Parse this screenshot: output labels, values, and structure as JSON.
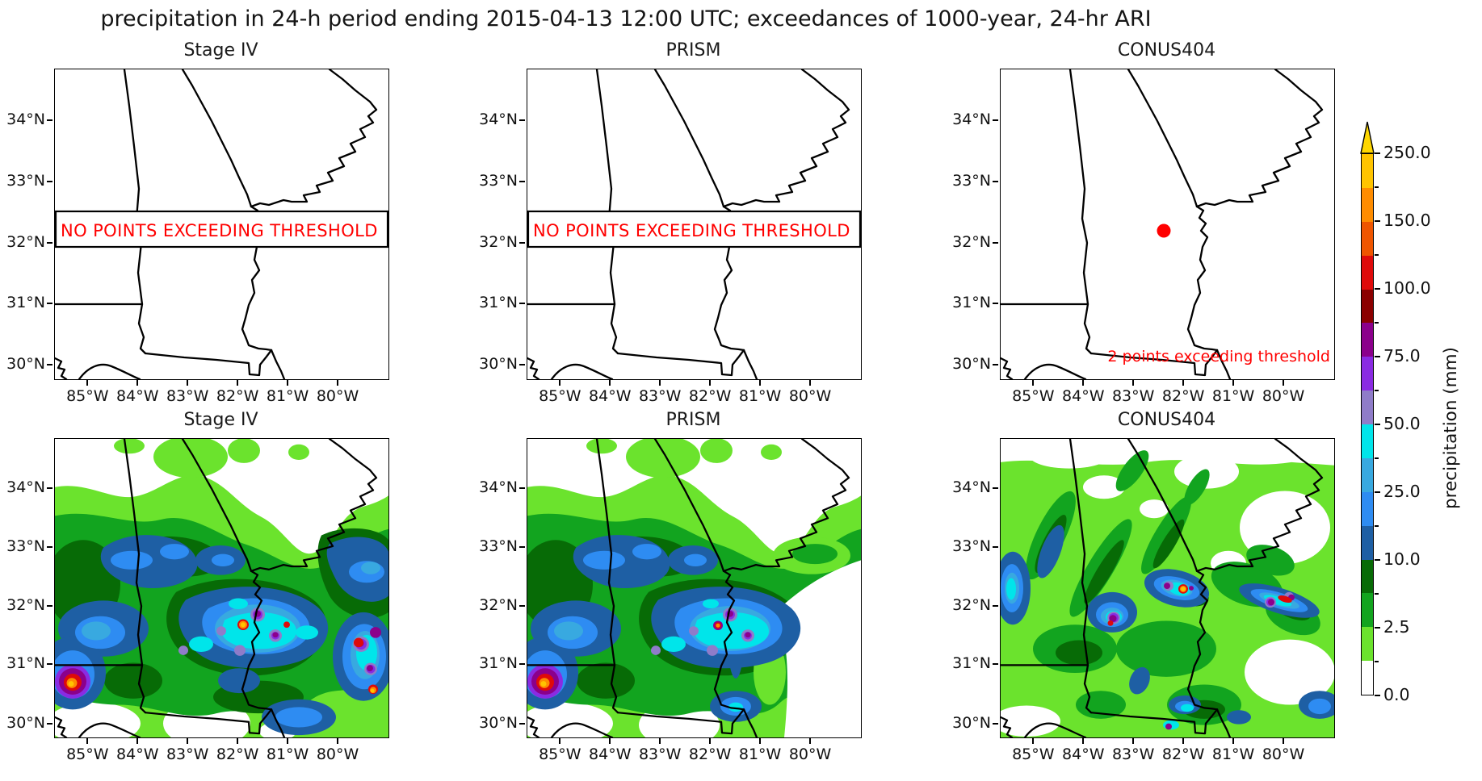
{
  "title": "precipitation in 24-h period ending 2015-04-13 12:00 UTC; exceedances of 1000-year, 24-hr ARI",
  "panels": [
    {
      "title": "Stage IV",
      "row": 1,
      "annotation": "NO POINTS EXCEEDING THRESHOLD"
    },
    {
      "title": "PRISM",
      "row": 1,
      "annotation": "NO POINTS EXCEEDING THRESHOLD"
    },
    {
      "title": "CONUS404",
      "row": 1,
      "annotation": "2 points exceeding threshold",
      "marker": "red-dot"
    },
    {
      "title": "Stage IV",
      "row": 2
    },
    {
      "title": "PRISM",
      "row": 2
    },
    {
      "title": "CONUS404",
      "row": 2
    }
  ],
  "axes": {
    "x_ticks": [
      "85°W",
      "84°W",
      "83°W",
      "82°W",
      "81°W",
      "80°W"
    ],
    "y_ticks": [
      "34°N",
      "33°N",
      "32°N",
      "31°N",
      "30°N"
    ]
  },
  "colorbar": {
    "label": "precipitation (mm)",
    "tick_labels_top_to_bottom": [
      "250.0",
      "150.0",
      "100.0",
      "75.0",
      "50.0",
      "25.0",
      "10.0",
      "2.5",
      "0.0"
    ],
    "colors_bottom_to_top": [
      "#FFFFFF",
      "#6BE32D",
      "#12A41F",
      "#076B06",
      "#1E5FA4",
      "#2E8CF2",
      "#38A9E0",
      "#00E5EA",
      "#8F7CC9",
      "#8A2BE2",
      "#8B008B",
      "#8B0000",
      "#DF0A0A",
      "#EF5500",
      "#FF8C00",
      "#FFC400"
    ],
    "arrow_color": "#FFD700"
  },
  "annotation_color": "#FF0000",
  "chart_data": {
    "type": "map-contour-grid",
    "grid": "2 rows x 3 columns of maps over Georgia / southeastern US",
    "columns": [
      "Stage IV",
      "PRISM",
      "CONUS404"
    ],
    "row_1_content": "points exceeding 1000-year 24-hr ARI threshold",
    "row_2_content": "24-h accumulated precipitation filled contours (mm)",
    "x_axis": {
      "ticks": [
        "85°W",
        "84°W",
        "83°W",
        "82°W",
        "81°W",
        "80°W"
      ]
    },
    "y_axis": {
      "ticks": [
        "34°N",
        "33°N",
        "32°N",
        "31°N",
        "30°N"
      ]
    },
    "colorbar": {
      "label": "precipitation (mm)",
      "levels": [
        0.0,
        2.5,
        10.0,
        25.0,
        50.0,
        75.0,
        100.0,
        150.0,
        250.0
      ],
      "extend": "max-arrow"
    },
    "exceedance_results": {
      "Stage IV": "NO POINTS EXCEEDING THRESHOLD",
      "PRISM": "NO POINTS EXCEEDING THRESHOLD",
      "CONUS404": {
        "points_exceeding": 2,
        "marker_location_approx": "82.3°W, 32.2°N"
      }
    },
    "precip_maxima_notes": "row 2: heaviest cores (>150-250 mm) near 85.3°W/30.9°N and 82°W/31.8°N in Stage IV and PRISM; CONUS404 core near 82.2°W/32.2°N"
  }
}
